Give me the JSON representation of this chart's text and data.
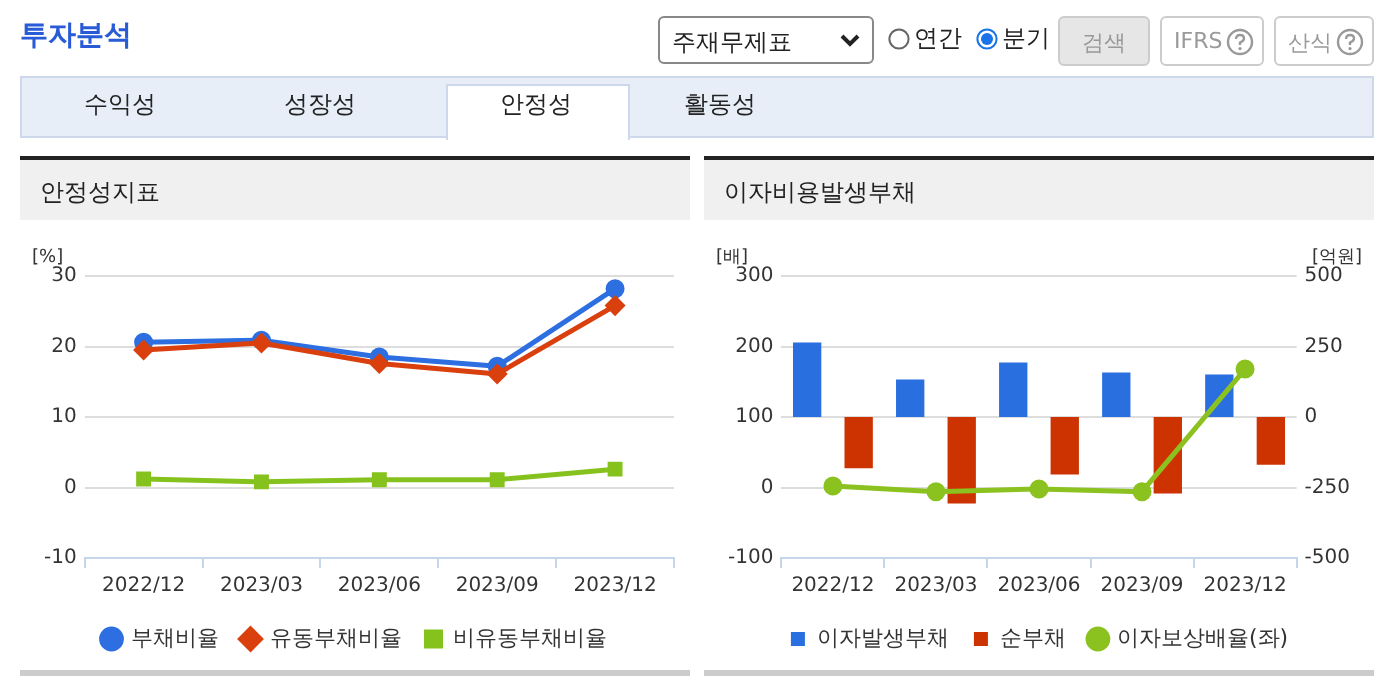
{
  "chart_data": [
    {
      "type": "other",
      "title": "투자분석",
      "annotations": [
        "주재무제표",
        "연간",
        "분기",
        "검색",
        "IFRS",
        "산식",
        "수익성",
        "성장성",
        "안정성",
        "활동성"
      ]
    },
    {
      "type": "line",
      "title": "안정성지표",
      "ylabel": "[%]",
      "categories": [
        "2022/12",
        "2023/03",
        "2023/06",
        "2023/09",
        "2023/12"
      ],
      "series": [
        {
          "name": "부채비율",
          "color": "#2d6fe0",
          "marker": "circle",
          "values": [
            20.6,
            20.9,
            18.5,
            17.2,
            28.2
          ]
        },
        {
          "name": "유동부채비율",
          "color": "#d9400e",
          "marker": "diamond",
          "values": [
            19.5,
            20.5,
            17.6,
            16.1,
            25.8
          ]
        },
        {
          "name": "비유동부채비율",
          "color": "#86c21d",
          "marker": "square",
          "values": [
            1.2,
            0.8,
            1.1,
            1.1,
            2.6
          ]
        }
      ],
      "ylim": [
        -10,
        30
      ],
      "yticks": [
        -10,
        0,
        10,
        20,
        30
      ],
      "grid": "y",
      "legend": "bottom"
    },
    {
      "type": "bar",
      "title": "이자비용발생부채",
      "ylabel": "[배]",
      "y2label": "[억원]",
      "categories": [
        "2022/12",
        "2023/03",
        "2023/06",
        "2023/09",
        "2023/12"
      ],
      "series": [
        {
          "name": "이자발생부채",
          "color": "#2a6fdf",
          "axis": "y2",
          "values": [
            264,
            133,
            193,
            158,
            151
          ]
        },
        {
          "name": "순부채",
          "color": "#cc3300",
          "axis": "y2",
          "values": [
            -182,
            -307,
            -204,
            -271,
            -169
          ]
        },
        {
          "name": "이자보상배율(좌)",
          "type": "line",
          "color": "#8cc21f",
          "marker": "circle",
          "values": [
            2,
            -6,
            -2,
            -6,
            168
          ]
        }
      ],
      "ylim": [
        -100,
        300
      ],
      "yticks": [
        -100,
        0,
        100,
        200,
        300
      ],
      "y2lim": [
        -500,
        500
      ],
      "y2ticks": [
        -500,
        -250,
        0,
        250,
        500
      ],
      "grid": "y",
      "legend": "bottom"
    }
  ]
}
